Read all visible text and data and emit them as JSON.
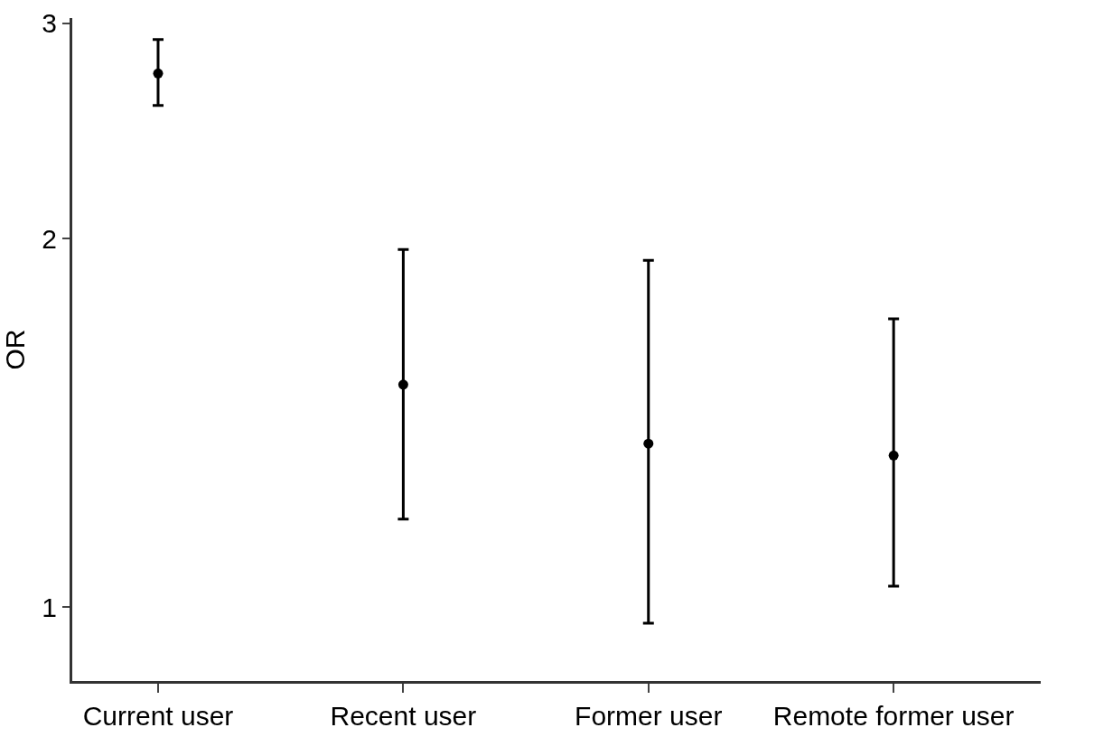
{
  "chart_data": {
    "type": "scatter",
    "ylabel": "OR",
    "categories": [
      "Current user",
      "Recent user",
      "Former user",
      "Remote former user"
    ],
    "series": [
      {
        "color": "#000000",
        "values": [
          2.73,
          1.52,
          1.36,
          1.33
        ],
        "errors": [
          [
            2.57,
            2.91
          ],
          [
            1.18,
            1.96
          ],
          [
            0.97,
            1.92
          ],
          [
            1.04,
            1.72
          ]
        ]
      }
    ],
    "log": "y",
    "ylim": [
      0.87,
      3.03
    ],
    "yticks": [
      1,
      2,
      3
    ],
    "grid": false,
    "marker": "circle"
  }
}
